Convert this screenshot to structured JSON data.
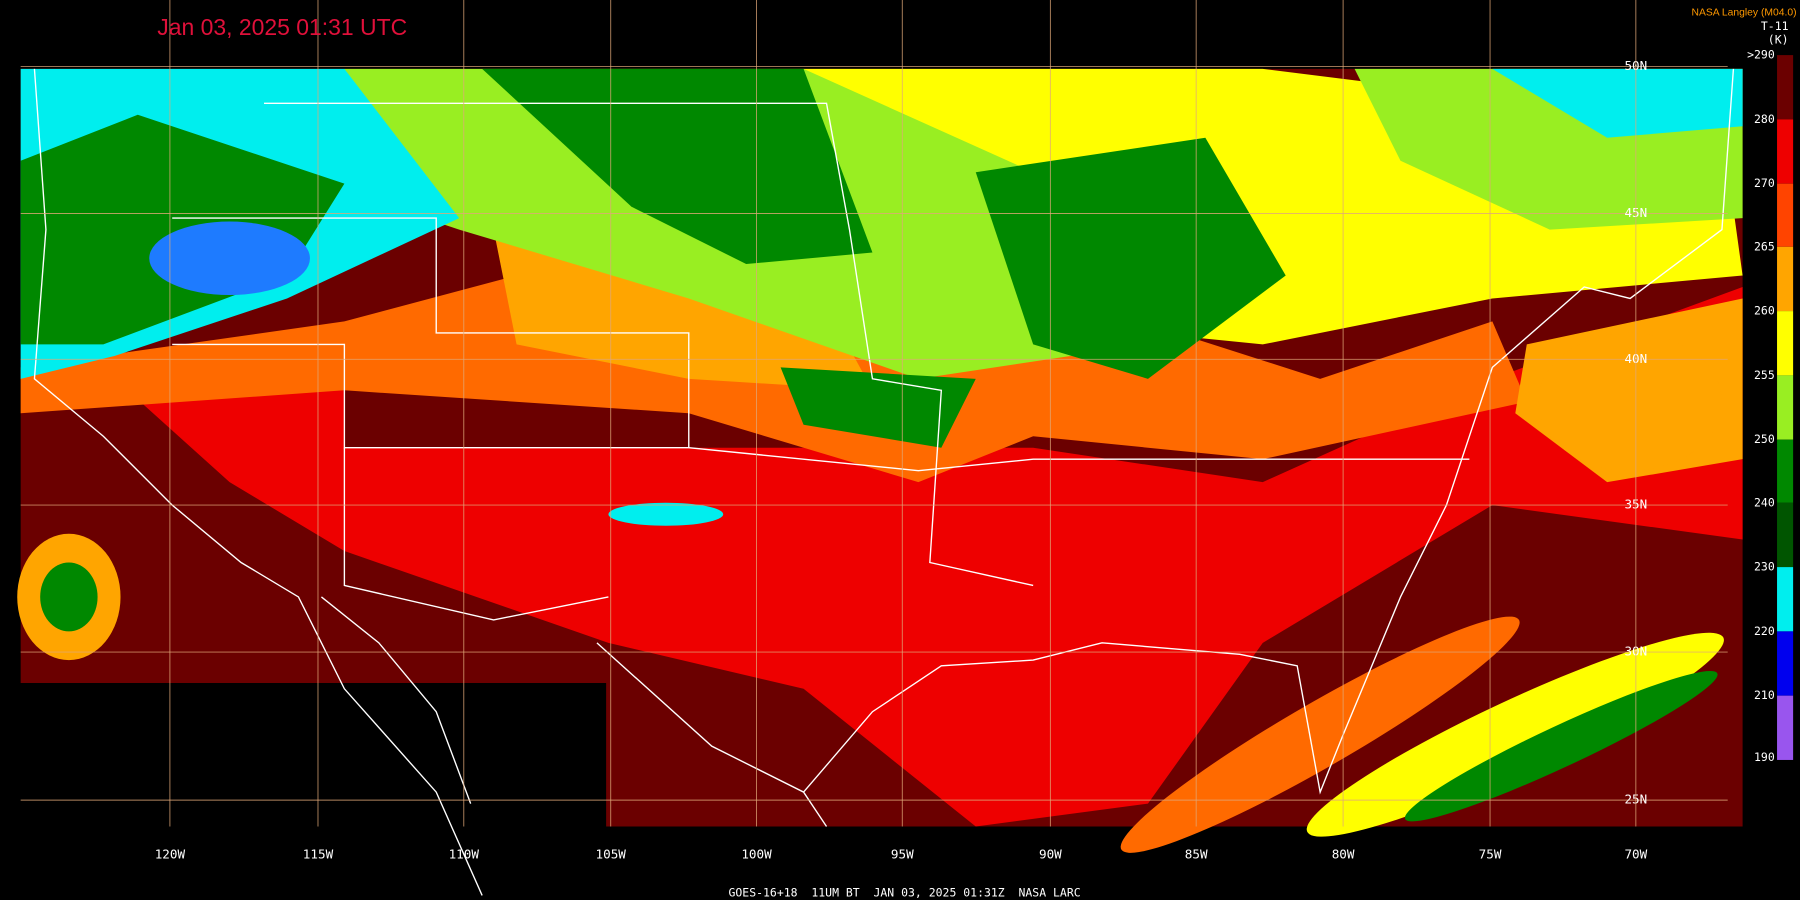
{
  "header": {
    "timestamp": "Jan 03, 2025 01:31 UTC",
    "credit": "NASA Langley (M04.0)",
    "product": "T-11",
    "unit": "(K)"
  },
  "colorbar": {
    "labels": [
      ">290",
      "280",
      "270",
      "265",
      "260",
      "255",
      "250",
      "240",
      "230",
      "220",
      "210",
      "190"
    ]
  },
  "grid": {
    "latitudes": [
      "50N",
      "45N",
      "40N",
      "35N",
      "30N",
      "25N"
    ],
    "longitudes": [
      "120W",
      "115W",
      "110W",
      "105W",
      "100W",
      "95W",
      "90W",
      "85W",
      "80W",
      "75W",
      "70W"
    ]
  },
  "footer": "GOES-16+18  11UM BT  JAN 03, 2025 01:31Z  NASA LARC"
}
